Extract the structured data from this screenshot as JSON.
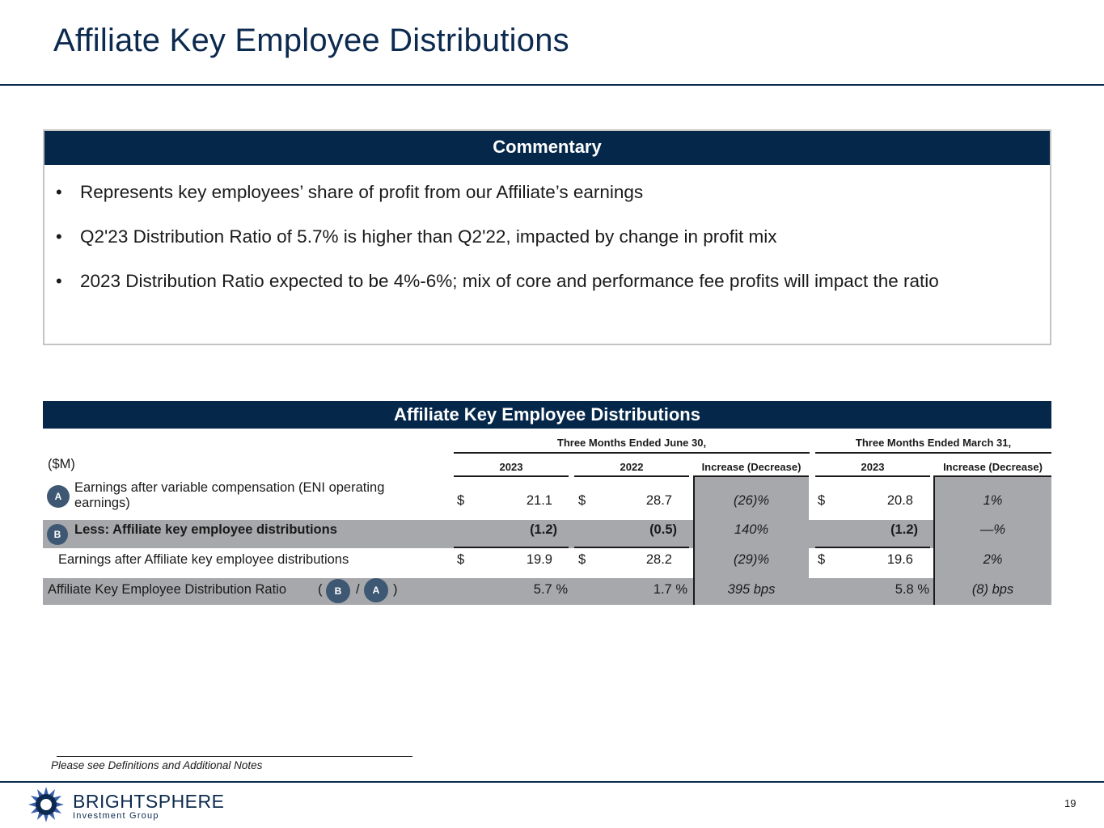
{
  "title": "Affiliate Key Employee Distributions",
  "commentary": {
    "header": "Commentary",
    "bullets": [
      "Represents key employees’ share of profit from our Affiliate’s earnings",
      "Q2'23 Distribution Ratio of 5.7% is higher than Q2'22, impacted by change in profit mix",
      "2023 Distribution Ratio expected to be 4%-6%; mix of core and performance fee profits will impact the ratio"
    ]
  },
  "table": {
    "header": "Affiliate Key Employee Distributions",
    "unit_label": "($M)",
    "group_june": "Three Months Ended June 30,",
    "group_march": "Three Months Ended March 31,",
    "col_2023": "2023",
    "col_2022": "2022",
    "col_change": "Increase (Decrease)",
    "col_2023_mar": "2023",
    "col_change_mar": "Increase (Decrease)",
    "currency": "$",
    "rows": [
      {
        "marker": "A",
        "label_line1": "Earnings after variable compensation (ENI operating",
        "label_line2": "earnings)",
        "v2023": "21.1",
        "v2022": "28.7",
        "change": "(26)%",
        "v2023_mar": "20.8",
        "change_mar": "1%"
      },
      {
        "marker": "B",
        "label": "Less: Affiliate key employee distributions",
        "v2023": "(1.2)",
        "v2022": "(0.5)",
        "change": "140%",
        "v2023_mar": "(1.2)",
        "change_mar": "—%"
      },
      {
        "label": "Earnings after Affiliate key employee distributions",
        "v2023": "19.9",
        "v2022": "28.2",
        "change": "(29)%",
        "v2023_mar": "19.6",
        "change_mar": "2%"
      },
      {
        "label": "Affiliate Key Employee Distribution Ratio",
        "formula_open": "(",
        "formula_b": "B",
        "formula_slash": "/",
        "formula_a": "A",
        "formula_close": ")",
        "v2023": "5.7 %",
        "v2022": "1.7 %",
        "change": "395 bps",
        "v2023_mar": "5.8 %",
        "change_mar": "(8) bps"
      }
    ]
  },
  "footnote": "Please see Definitions and Additional Notes",
  "logo": {
    "name": "BRIGHTSPHERE",
    "sub": "Investment Group"
  },
  "page_number": "19",
  "colors": {
    "navy": "#05274a",
    "gray": "#a6a8ab",
    "marker": "#3e5873"
  }
}
